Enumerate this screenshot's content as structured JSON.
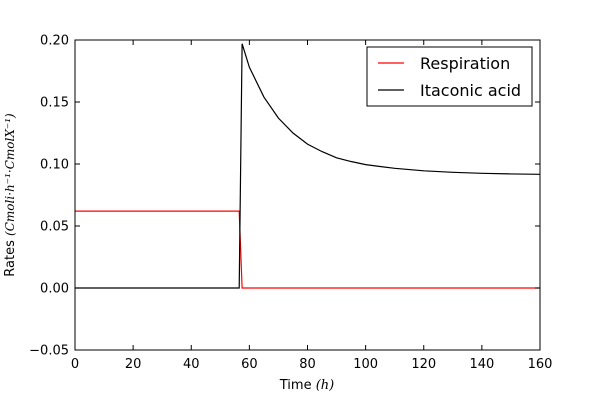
{
  "chart_data": {
    "type": "line",
    "title": "",
    "xlabel": "Time",
    "xlabel_unit": "(h)",
    "ylabel": "Rates",
    "ylabel_unit": "(Cmoli·h⁻¹·CmolX⁻¹)",
    "xlim": [
      0,
      160
    ],
    "ylim": [
      -0.05,
      0.2
    ],
    "x_ticks": [
      "0",
      "20",
      "40",
      "60",
      "80",
      "100",
      "120",
      "140",
      "160"
    ],
    "y_ticks": [
      "−0.05",
      "0.00",
      "0.05",
      "0.10",
      "0.15",
      "0.20"
    ],
    "grid": false,
    "legend_position": "top-right",
    "series": [
      {
        "name": "Respiration",
        "color": "#ff0000",
        "x": [
          0,
          56.5,
          57.5,
          160
        ],
        "y": [
          0.062,
          0.062,
          0.0,
          0.0
        ]
      },
      {
        "name": "Itaconic acid",
        "color": "#000000",
        "x": [
          0,
          56.5,
          57.5,
          60,
          65,
          70,
          75,
          80,
          85,
          90,
          95,
          100,
          110,
          120,
          130,
          140,
          150,
          160
        ],
        "y": [
          0.0,
          0.0,
          0.197,
          0.178,
          0.154,
          0.137,
          0.125,
          0.116,
          0.11,
          0.105,
          0.102,
          0.0995,
          0.0965,
          0.0945,
          0.0933,
          0.0925,
          0.092,
          0.0917
        ]
      }
    ]
  }
}
